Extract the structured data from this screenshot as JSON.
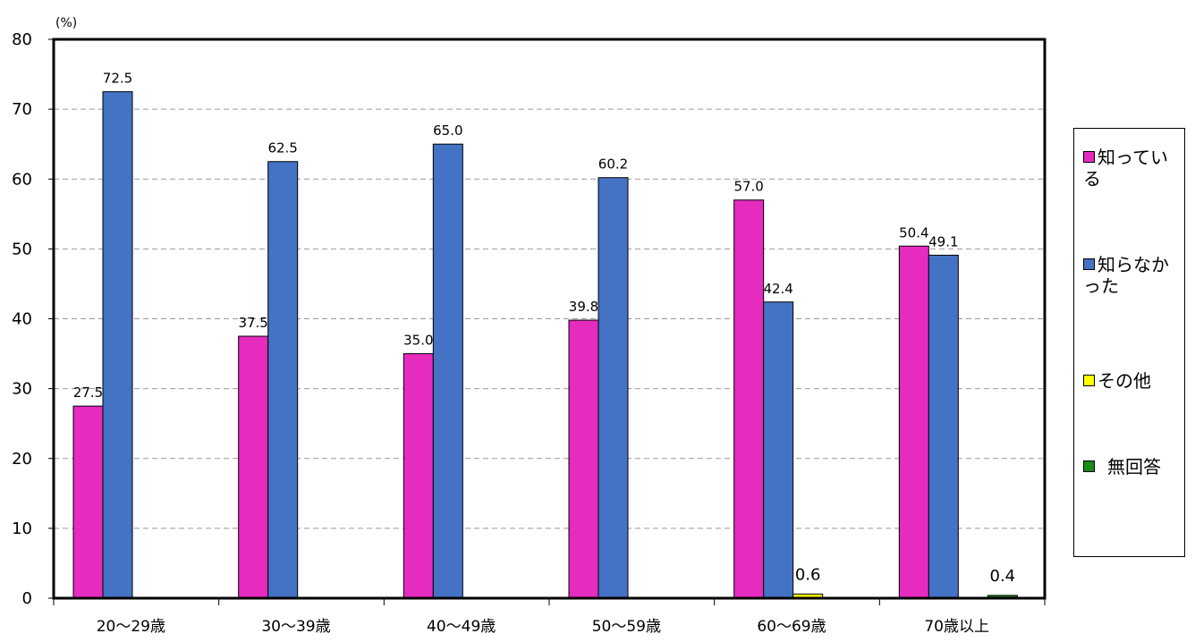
{
  "chart_data": {
    "type": "bar",
    "unit_label": "(%)",
    "categories": [
      "20～29歳",
      "30～39歳",
      "40～49歳",
      "50～59歳",
      "60～69歳",
      "70歳以上"
    ],
    "series": [
      {
        "name": "知っている",
        "color": "#e62bbf",
        "values": [
          27.5,
          37.5,
          35.0,
          39.8,
          57.0,
          50.4
        ],
        "labels": [
          "27.5",
          "37.5",
          "35.0",
          "39.8",
          "57.0",
          "50.4"
        ]
      },
      {
        "name": "知らなかった",
        "color": "#4472c4",
        "values": [
          72.5,
          62.5,
          65.0,
          60.2,
          42.4,
          49.1
        ],
        "labels": [
          "72.5",
          "62.5",
          "65.0",
          "60.2",
          "42.4",
          "49.1"
        ]
      },
      {
        "name": "その他",
        "color": "#ffff00",
        "values": [
          0,
          0,
          0,
          0,
          0.6,
          0
        ],
        "labels": [
          "",
          "",
          "",
          "",
          "0.6",
          ""
        ]
      },
      {
        "name": "無回答",
        "color": "#1a8a1a",
        "values": [
          0,
          0,
          0,
          0,
          0,
          0.4
        ],
        "labels": [
          "",
          "",
          "",
          "",
          "",
          "0.4"
        ]
      }
    ],
    "yticks": [
      "0",
      "10",
      "20",
      "30",
      "40",
      "50",
      "60",
      "70",
      "80"
    ],
    "ylim": [
      0,
      80
    ],
    "grid": true,
    "legend_position": "right"
  }
}
